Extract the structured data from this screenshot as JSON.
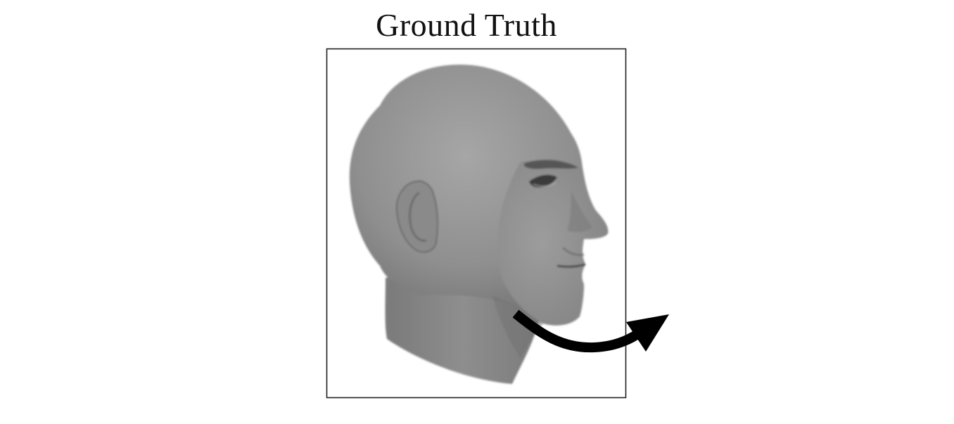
{
  "figure": {
    "title": "Ground Truth"
  },
  "panel": {
    "subject": "grayscale-3d-head-render",
    "view": "right-side-profile",
    "colors": {
      "background": "#ffffff",
      "frame": "#222222",
      "skin_light": "#a7a7a7",
      "skin_mid": "#8f8f8f",
      "skin_dark": "#6e6e6e",
      "arrow": "#000000"
    }
  },
  "annotation": {
    "type": "curved-arrow",
    "direction": "rotate-right"
  }
}
